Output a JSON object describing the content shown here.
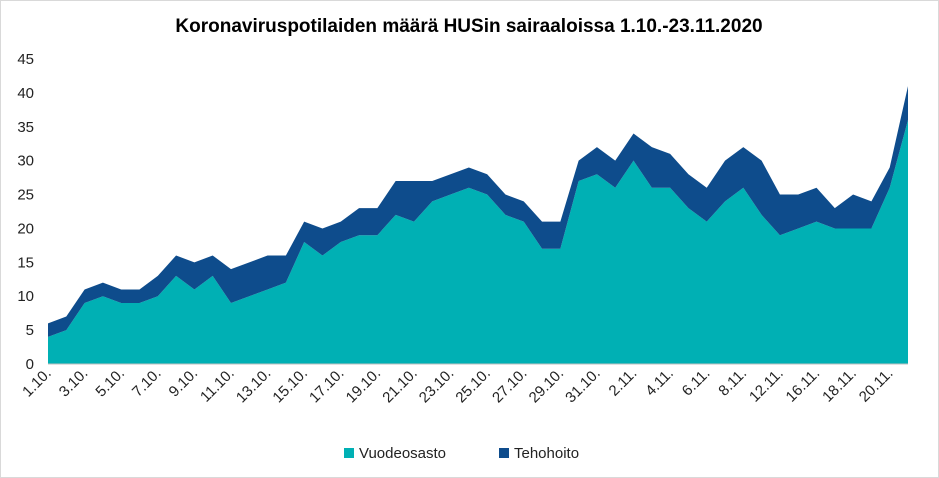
{
  "chart_data": {
    "type": "area",
    "stacked": true,
    "title": "Koronaviruspotilaiden määrä HUSin sairaaloissa 1.10.-23.11.2020",
    "xlabel": "",
    "ylabel": "",
    "ylim": [
      0,
      45
    ],
    "yticks": [
      0,
      5,
      10,
      15,
      20,
      25,
      30,
      35,
      40,
      45
    ],
    "grid": false,
    "legend": "bottom",
    "x": [
      "1.10.",
      "2.10.",
      "3.10.",
      "4.10.",
      "5.10.",
      "6.10.",
      "7.10.",
      "8.10.",
      "9.10.",
      "10.10.",
      "11.10.",
      "12.10.",
      "13.10.",
      "14.10.",
      "15.10.",
      "16.10.",
      "17.10.",
      "18.10.",
      "19.10.",
      "20.10.",
      "21.10.",
      "22.10.",
      "23.10.",
      "24.10.",
      "25.10.",
      "26.10.",
      "27.10.",
      "28.10.",
      "29.10.",
      "30.10.",
      "31.10.",
      "1.11.",
      "2.11.",
      "3.11.",
      "4.11.",
      "5.11.",
      "6.11.",
      "7.11.",
      "8.11.",
      "9.11.",
      "12.11.",
      "13.11.",
      "16.11.",
      "17.11.",
      "18.11.",
      "19.11.",
      "20.11.",
      "23.11."
    ],
    "tick_labels": [
      "1.10.",
      "3.10.",
      "5.10.",
      "7.10.",
      "9.10.",
      "11.10.",
      "13.10.",
      "15.10.",
      "17.10.",
      "19.10.",
      "21.10.",
      "23.10.",
      "25.10.",
      "27.10.",
      "29.10.",
      "31.10.",
      "2.11.",
      "4.11.",
      "6.11.",
      "8.11.",
      "12.11.",
      "16.11.",
      "18.11.",
      "20.11."
    ],
    "series": [
      {
        "name": "Vuodeosasto",
        "color": "#00b0b4",
        "values": [
          4,
          5,
          9,
          10,
          9,
          9,
          10,
          13,
          11,
          13,
          9,
          10,
          11,
          12,
          18,
          16,
          18,
          19,
          19,
          22,
          21,
          24,
          25,
          26,
          25,
          22,
          21,
          17,
          17,
          27,
          28,
          26,
          30,
          26,
          26,
          23,
          21,
          24,
          26,
          22,
          19,
          20,
          21,
          20,
          20,
          20,
          26,
          36
        ]
      },
      {
        "name": "Tehohoito",
        "color": "#0e4c8c",
        "values": [
          2,
          2,
          2,
          2,
          2,
          2,
          3,
          3,
          4,
          3,
          5,
          5,
          5,
          4,
          3,
          4,
          3,
          4,
          4,
          5,
          6,
          3,
          3,
          3,
          3,
          3,
          3,
          4,
          4,
          3,
          4,
          4,
          4,
          6,
          5,
          5,
          5,
          6,
          6,
          8,
          6,
          5,
          5,
          3,
          5,
          4,
          3,
          5
        ]
      }
    ]
  }
}
